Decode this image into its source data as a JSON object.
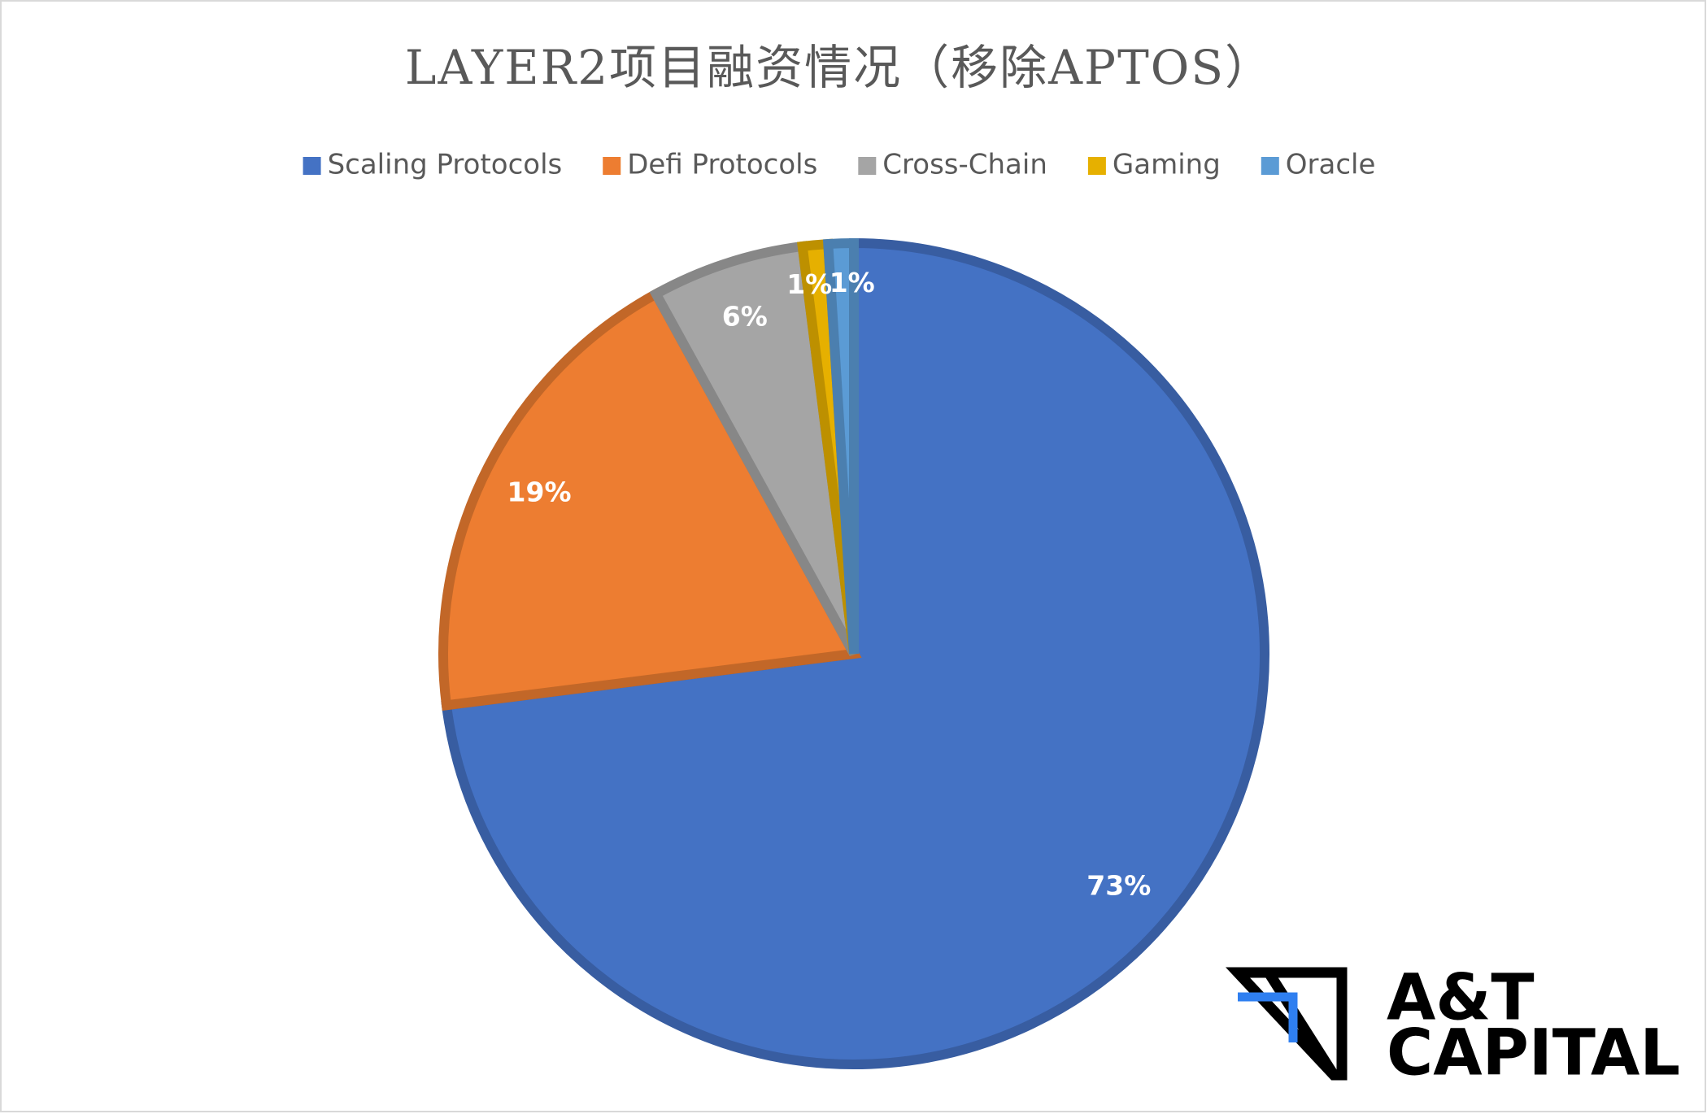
{
  "chart_data": {
    "type": "pie",
    "title": "LAYER2项目融资情况（移除APTOS）",
    "categories": [
      "Scaling Protocols",
      "Defi Protocols",
      "Cross-Chain",
      "Gaming",
      "Oracle"
    ],
    "values": [
      73,
      19,
      6,
      1,
      1
    ],
    "value_labels": [
      "73%",
      "19%",
      "6%",
      "1%",
      "1%"
    ],
    "colors": [
      "#4472c4",
      "#ed7d31",
      "#a5a5a5",
      "#e6b000",
      "#5b9bd5"
    ],
    "legend": "top"
  },
  "watermark": [
    "A&T",
    "CAPITAL"
  ]
}
